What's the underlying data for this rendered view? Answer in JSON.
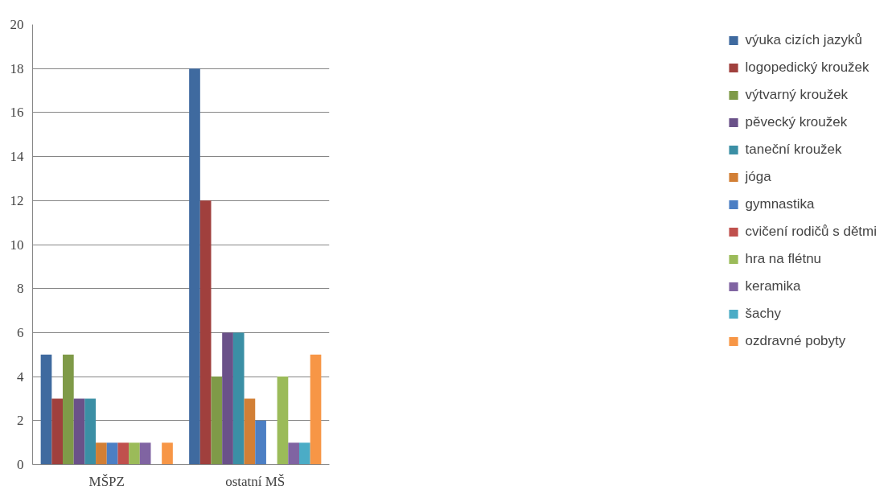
{
  "chart_data": {
    "type": "bar",
    "categories": [
      "MŠPZ",
      "ostatní MŠ"
    ],
    "series": [
      {
        "name": "výuka cizích jazyků",
        "color": "#3f6a9f",
        "values": [
          5,
          18
        ]
      },
      {
        "name": "logopedický kroužek",
        "color": "#a0403d",
        "values": [
          3,
          12
        ]
      },
      {
        "name": "výtvarný kroužek",
        "color": "#7f9a48",
        "values": [
          5,
          4
        ]
      },
      {
        "name": "pěvecký kroužek",
        "color": "#6a5189",
        "values": [
          3,
          6
        ]
      },
      {
        "name": "taneční kroužek",
        "color": "#3b8fa5",
        "values": [
          3,
          6
        ]
      },
      {
        "name": "jóga",
        "color": "#d27f35",
        "values": [
          1,
          3
        ]
      },
      {
        "name": "gymnastika",
        "color": "#4c7fc4",
        "values": [
          1,
          2
        ]
      },
      {
        "name": "cvičení rodičů s dětmi",
        "color": "#c0504d",
        "values": [
          1,
          0
        ]
      },
      {
        "name": "hra na flétnu",
        "color": "#9bbb59",
        "values": [
          1,
          4
        ]
      },
      {
        "name": "keramika",
        "color": "#8064a2",
        "values": [
          1,
          1
        ]
      },
      {
        "name": "šachy",
        "color": "#4bacc6",
        "values": [
          0,
          1
        ]
      },
      {
        "name": "ozdravné pobyty",
        "color": "#f79646",
        "values": [
          1,
          5
        ]
      }
    ],
    "ylim": [
      0,
      20
    ],
    "yticks": [
      0,
      2,
      4,
      6,
      8,
      10,
      12,
      14,
      16,
      18,
      20
    ],
    "grid": "y",
    "legend": "right"
  }
}
